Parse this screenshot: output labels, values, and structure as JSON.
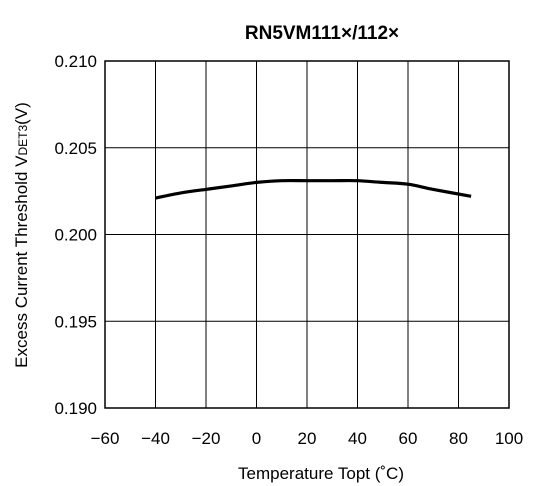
{
  "chart_data": {
    "type": "line",
    "title": "RN5VM111×/112×",
    "xlabel": "Temperature Topt (˚C)",
    "ylabel": {
      "main": "Excess Current Threshold V",
      "subscript": "DET3",
      "unit": "(V)"
    },
    "xlim": [
      -60,
      100
    ],
    "ylim": [
      0.19,
      0.21
    ],
    "x_ticks": [
      -60,
      -40,
      -20,
      0,
      20,
      40,
      60,
      80,
      100
    ],
    "x_tick_labels": [
      "−60",
      "−40",
      "−20",
      "0",
      "20",
      "40",
      "60",
      "80",
      "100"
    ],
    "y_ticks": [
      0.19,
      0.195,
      0.2,
      0.205,
      0.21
    ],
    "y_tick_labels": [
      "0.190",
      "0.195",
      "0.200",
      "0.205",
      "0.210"
    ],
    "grid": true,
    "series": [
      {
        "x": [
          -40,
          -30,
          -20,
          -10,
          0,
          10,
          20,
          30,
          40,
          50,
          60,
          70,
          85
        ],
        "y": [
          0.2021,
          0.2024,
          0.2026,
          0.2028,
          0.203,
          0.2031,
          0.2031,
          0.2031,
          0.2031,
          0.203,
          0.2029,
          0.2026,
          0.2022
        ],
        "color": "#000000"
      }
    ]
  }
}
